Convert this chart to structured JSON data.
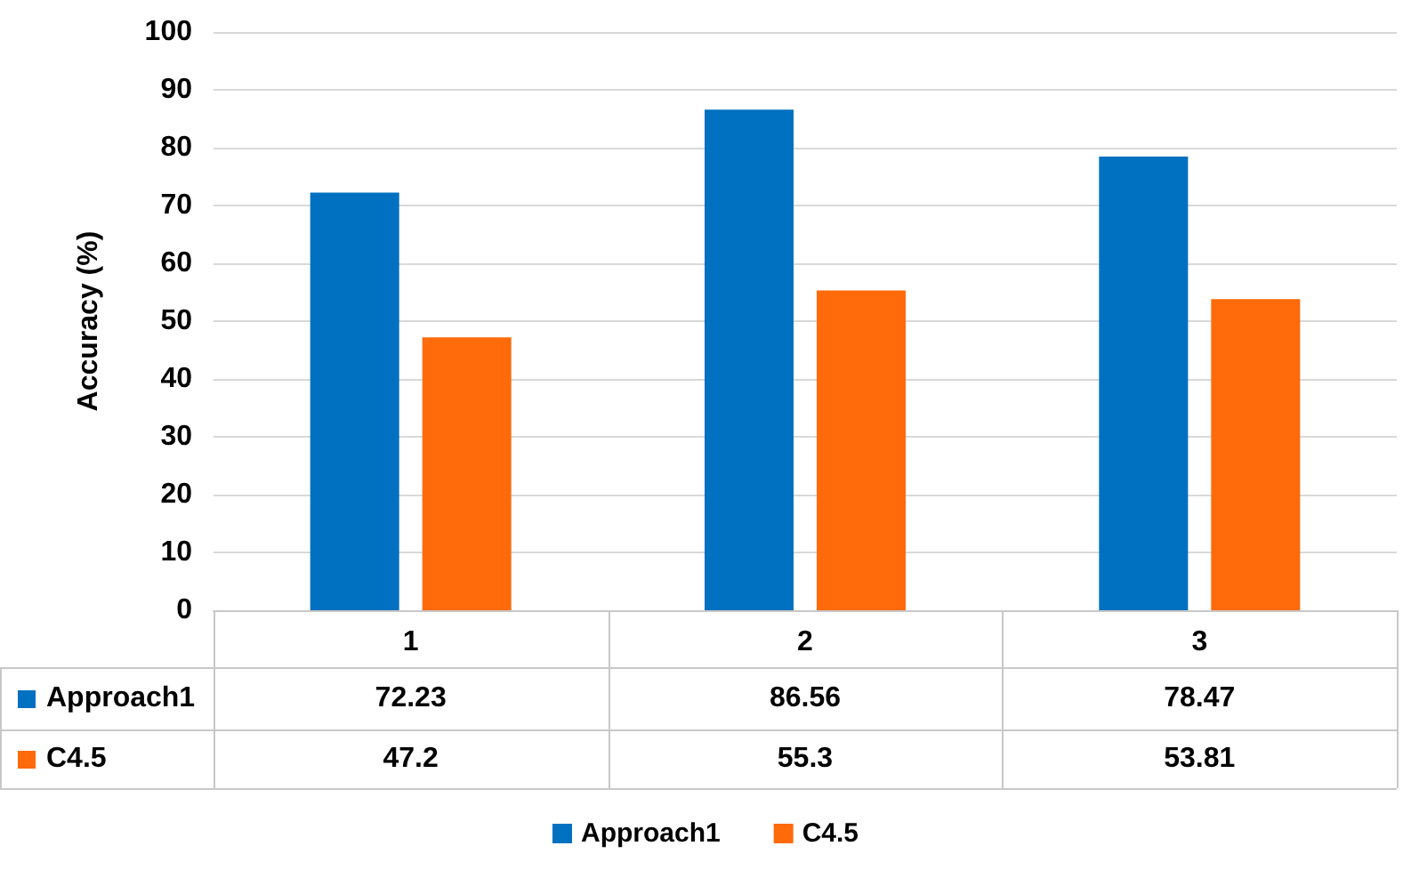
{
  "chart_data": {
    "type": "bar",
    "ylabel": "Accuracy (%)",
    "categories": [
      "1",
      "2",
      "3"
    ],
    "series": [
      {
        "name": "Approach1",
        "color": "#0070c0",
        "values": [
          72.23,
          86.56,
          78.47
        ]
      },
      {
        "name": "C4.5",
        "color": "#ff6a0a",
        "values": [
          47.2,
          55.3,
          53.81
        ]
      }
    ],
    "ylim": [
      0,
      100
    ],
    "yticks": [
      0,
      10,
      20,
      30,
      40,
      50,
      60,
      70,
      80,
      90,
      100
    ],
    "grid": "y",
    "legend": "bottom",
    "data_labels": true
  }
}
